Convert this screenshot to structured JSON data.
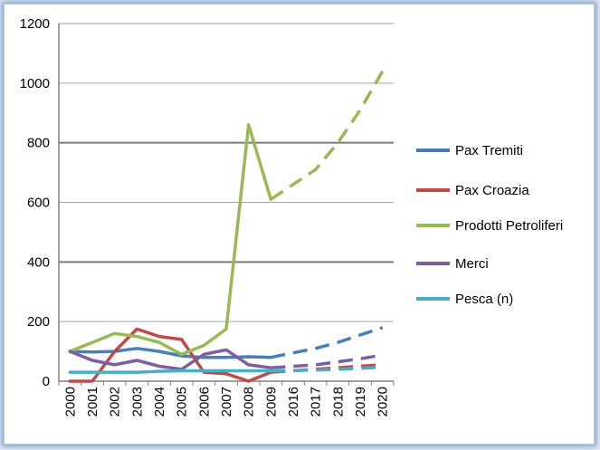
{
  "chart_data": {
    "type": "line",
    "categories": [
      "2000",
      "2001",
      "2002",
      "2003",
      "2004",
      "2005",
      "2006",
      "2007",
      "2008",
      "2009",
      "2016",
      "2017",
      "2018",
      "2019",
      "2020"
    ],
    "ylim": [
      0,
      1200
    ],
    "yticks": [
      0,
      200,
      400,
      600,
      800,
      1000,
      1200
    ],
    "grid": "horizontal, major lines at 400 and 800 emphasized",
    "legend_position": "right",
    "projection_style": "dashed from 2009 onward",
    "series": [
      {
        "name": "Pax Tremiti",
        "color": "#4a7ebb",
        "values": [
          100,
          98,
          100,
          110,
          100,
          85,
          80,
          80,
          82,
          80,
          95,
          110,
          130,
          155,
          180
        ]
      },
      {
        "name": "Pax Croazia",
        "color": "#be4b48",
        "values": [
          0,
          0,
          100,
          175,
          150,
          140,
          30,
          25,
          0,
          30,
          35,
          40,
          45,
          50,
          55
        ]
      },
      {
        "name": "Prodotti Petroliferi",
        "color": "#98b954",
        "values": [
          100,
          130,
          160,
          150,
          130,
          90,
          120,
          175,
          860,
          610,
          660,
          710,
          800,
          910,
          1040
        ]
      },
      {
        "name": "Merci",
        "color": "#7d5fa0",
        "values": [
          100,
          70,
          55,
          70,
          50,
          40,
          90,
          105,
          55,
          45,
          50,
          55,
          65,
          75,
          88
        ]
      },
      {
        "name": "Pesca (n)",
        "color": "#4bacc6",
        "values": [
          30,
          30,
          30,
          30,
          33,
          35,
          35,
          35,
          35,
          35,
          36,
          37,
          40,
          43,
          47
        ]
      }
    ]
  }
}
